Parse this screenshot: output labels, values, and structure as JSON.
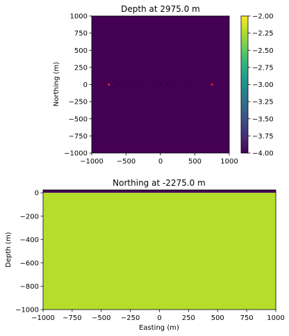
{
  "chart_data": [
    {
      "type": "heatmap",
      "title": "Depth at 2975.0 m",
      "xlabel": "",
      "ylabel": "Northing (m)",
      "xlim": [
        -1000,
        1000
      ],
      "ylim": [
        -1000,
        1000
      ],
      "xticks": [
        -1000,
        -500,
        0,
        500,
        1000
      ],
      "yticks": [
        1000,
        750,
        500,
        250,
        0,
        -250,
        -500,
        -750,
        -1000
      ],
      "fill_value": -4.0,
      "fill_color": "#440154",
      "markers": {
        "endpoints": {
          "x": [
            -750,
            750
          ],
          "y": [
            0,
            0
          ],
          "color": "#d62728"
        },
        "receivers": {
          "x": [
            -600,
            -500,
            -400,
            -300,
            -200,
            -100,
            0,
            100,
            200,
            300,
            400
          ],
          "y": [
            0,
            0,
            0,
            0,
            0,
            0,
            0,
            0,
            0,
            0,
            0
          ],
          "color": "#000000"
        }
      },
      "colorbar": {
        "min": -4.0,
        "max": -2.0,
        "ticks": [
          "-2.00",
          "-2.25",
          "-2.50",
          "-2.75",
          "-3.00",
          "-3.25",
          "-3.50",
          "-3.75",
          "-4.00"
        ],
        "colormap": [
          "#440154",
          "#482878",
          "#3e4989",
          "#31688e",
          "#26828e",
          "#1f9e89",
          "#35b779",
          "#6ece58",
          "#b5de2b",
          "#fde725"
        ]
      },
      "grid": false
    },
    {
      "type": "heatmap",
      "title": "Northing at -2275.0 m",
      "xlabel": "Easting (m)",
      "ylabel": "Depth (m)",
      "xlim": [
        -1000,
        1000
      ],
      "ylim": [
        -1000,
        25
      ],
      "xticks": [
        -1000,
        -750,
        -500,
        -250,
        0,
        250,
        500,
        750,
        1000
      ],
      "yticks": [
        0,
        -200,
        -400,
        -600,
        -800,
        -1000
      ],
      "layers": [
        {
          "top": 25,
          "bottom": 0,
          "color": "#440154"
        },
        {
          "top": 0,
          "bottom": -1000,
          "color": "#b5de2b"
        }
      ],
      "grid": false
    }
  ]
}
